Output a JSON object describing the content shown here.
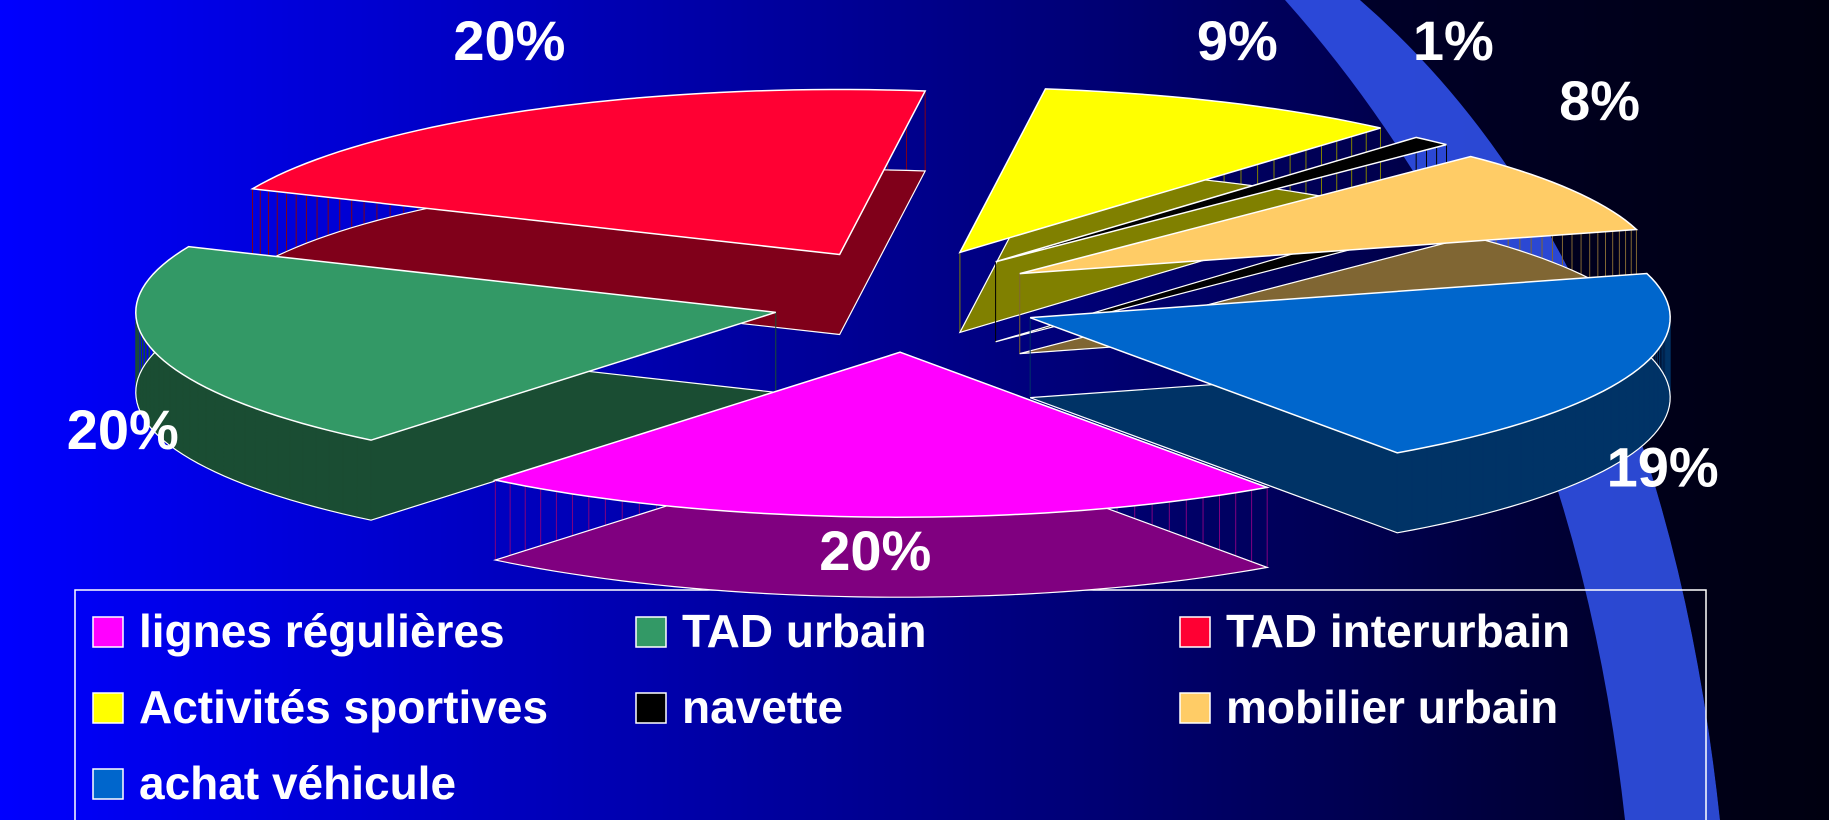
{
  "chart_data": {
    "type": "pie3d",
    "categories": [
      "lignes régulières",
      "TAD urbain",
      "TAD interurbain",
      "Activités sportives",
      "navette",
      "mobilier urbain",
      "achat véhicule"
    ],
    "values": [
      20,
      20,
      20,
      9,
      1,
      8,
      19
    ],
    "value_labels": [
      "20%",
      "20%",
      "20%",
      "9%",
      "1%",
      "8%",
      "19%"
    ],
    "colors": [
      "#ff00ff",
      "#339966",
      "#ff0033",
      "#ffff00",
      "#000000",
      "#ffcc66",
      "#0066cc"
    ],
    "legend": "bottom"
  }
}
